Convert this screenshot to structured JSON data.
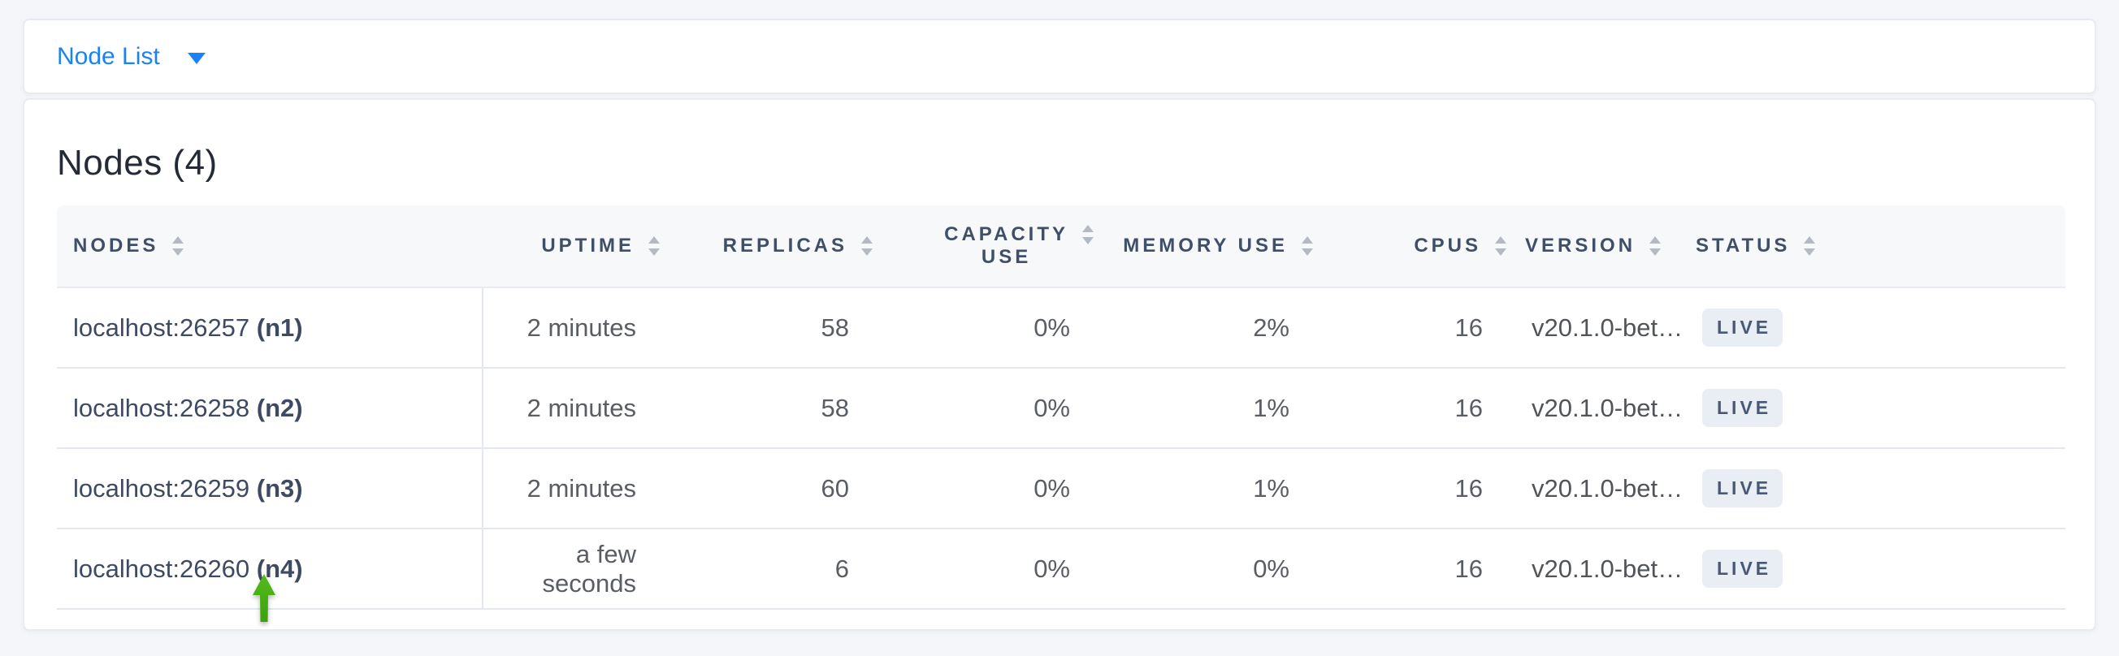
{
  "toolbar": {
    "view_selector_label": "Node List"
  },
  "content": {
    "title": "Nodes (4)"
  },
  "table": {
    "columns": [
      {
        "key": "nodes",
        "label": "NODES",
        "align": "left"
      },
      {
        "key": "uptime",
        "label": "UPTIME",
        "align": "right"
      },
      {
        "key": "replicas",
        "label": "REPLICAS",
        "align": "right"
      },
      {
        "key": "capacity_use",
        "label": "CAPACITY USE",
        "label_lines": [
          "CAPACITY",
          "USE"
        ],
        "align": "right"
      },
      {
        "key": "memory_use",
        "label": "MEMORY USE",
        "align": "right"
      },
      {
        "key": "cpus",
        "label": "CPUS",
        "align": "right"
      },
      {
        "key": "version",
        "label": "VERSION",
        "align": "left"
      },
      {
        "key": "status",
        "label": "STATUS",
        "align": "left"
      }
    ],
    "rows": [
      {
        "address": "localhost:26257",
        "node_id": "(n1)",
        "uptime": "2 minutes",
        "replicas": "58",
        "capacity_use": "0%",
        "memory_use": "2%",
        "cpus": "16",
        "version": "v20.1.0-bet…",
        "status": "LIVE"
      },
      {
        "address": "localhost:26258",
        "node_id": "(n2)",
        "uptime": "2 minutes",
        "replicas": "58",
        "capacity_use": "0%",
        "memory_use": "1%",
        "cpus": "16",
        "version": "v20.1.0-bet…",
        "status": "LIVE"
      },
      {
        "address": "localhost:26259",
        "node_id": "(n3)",
        "uptime": "2 minutes",
        "replicas": "60",
        "capacity_use": "0%",
        "memory_use": "1%",
        "cpus": "16",
        "version": "v20.1.0-bet…",
        "status": "LIVE"
      },
      {
        "address": "localhost:26260",
        "node_id": "(n4)",
        "uptime": "a few seconds",
        "replicas": "6",
        "capacity_use": "0%",
        "memory_use": "0%",
        "cpus": "16",
        "version": "v20.1.0-bet…",
        "status": "LIVE"
      }
    ]
  },
  "annotation": {
    "green_arrow_points_to": "localhost:26260 (n4)",
    "green_arrow_direction": "up"
  },
  "colors": {
    "link_blue": "#1a82f7",
    "header_text": "#3f4e69",
    "badge_bg": "#e9edf4",
    "badge_text": "#475975",
    "arrow_green": "#44ad13",
    "node_text": "#3e4a61",
    "value_text": "#595d64"
  }
}
